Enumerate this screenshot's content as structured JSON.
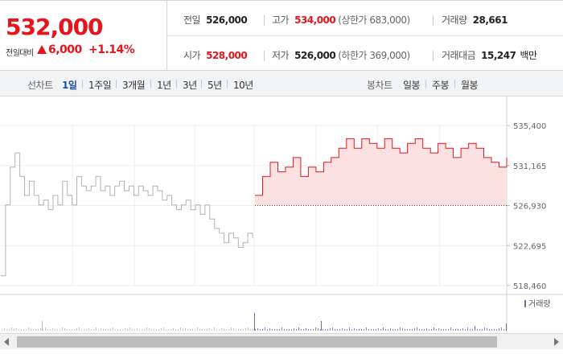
{
  "quote": {
    "price": "532,000",
    "change_label": "전일대비",
    "change_value": "6,000",
    "change_percent": "+1.14%",
    "up_color": "#e8141c"
  },
  "stats": {
    "prev_close": {
      "label": "전일",
      "value": "526,000"
    },
    "high": {
      "label": "고가",
      "value": "534,000",
      "sub": "(상한가 683,000)"
    },
    "volume": {
      "label": "거래량",
      "value": "28,661"
    },
    "open": {
      "label": "시가",
      "value": "528,000"
    },
    "low": {
      "label": "저가",
      "value": "526,000",
      "sub": "(하한가 369,000)"
    },
    "trade_amount": {
      "label": "거래대금",
      "value": "15,247",
      "unit": "백만"
    }
  },
  "toolbar": {
    "line_chart_label": "선차트",
    "periods": [
      "1일",
      "1주일",
      "3개월",
      "1년",
      "3년",
      "5년",
      "10년"
    ],
    "selected_period": "1일",
    "candle_chart_label": "봉차트",
    "candle_periods": [
      "일봉",
      "주봉",
      "월봉"
    ]
  },
  "chart_data": {
    "type": "line",
    "title": "",
    "y_ticks": [
      "535,400",
      "531,165",
      "526,930",
      "522,695",
      "518,460"
    ],
    "ylim": [
      518460,
      535400
    ],
    "reference_line": 526930,
    "series": [
      {
        "values": [
          519500,
          527000,
          531000,
          532500,
          530000,
          528000,
          529500,
          528000,
          527000,
          527500,
          526500,
          528000,
          527000,
          529500,
          528000,
          527000,
          530000,
          529000,
          528500,
          529000,
          530000,
          528500,
          529000,
          528000,
          529000,
          529500,
          528500,
          529000,
          528000,
          529000,
          528500,
          528000,
          529000,
          528500,
          527500,
          528000,
          527000,
          526500,
          527000,
          527500,
          526500,
          527000,
          526000,
          527000,
          525500,
          524500,
          524000,
          523000,
          524000,
          523500,
          522500,
          523000,
          524000,
          523500
        ]
      },
      {
        "values": [
          528000,
          530000,
          531500,
          530500,
          531000,
          532000,
          530000,
          531000,
          530500,
          531500,
          532000,
          533000,
          534000,
          533000,
          534000,
          533500,
          533000,
          534000,
          533000,
          532500,
          533500,
          534000,
          533000,
          532500,
          533500,
          533000,
          532000,
          533000,
          533500,
          533000,
          532000,
          531500,
          531000,
          532000
        ]
      }
    ],
    "volume_legend": "거래량",
    "colors": {
      "prev_day_line": "#b3b3b3",
      "today_line": "#e8141c",
      "fill": "#fbe1e2",
      "volume": "#6e6ea6"
    }
  },
  "scrollbar": {
    "left_arrow": "◀",
    "right_arrow": "▶"
  }
}
